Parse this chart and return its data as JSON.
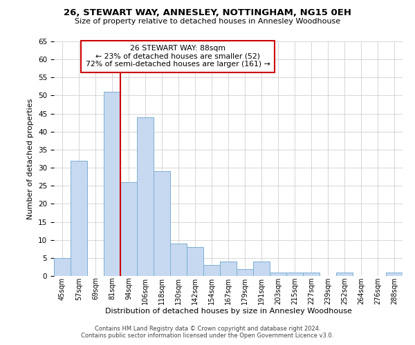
{
  "title": "26, STEWART WAY, ANNESLEY, NOTTINGHAM, NG15 0EH",
  "subtitle": "Size of property relative to detached houses in Annesley Woodhouse",
  "xlabel": "Distribution of detached houses by size in Annesley Woodhouse",
  "ylabel": "Number of detached properties",
  "bar_labels": [
    "45sqm",
    "57sqm",
    "69sqm",
    "81sqm",
    "94sqm",
    "106sqm",
    "118sqm",
    "130sqm",
    "142sqm",
    "154sqm",
    "167sqm",
    "179sqm",
    "191sqm",
    "203sqm",
    "215sqm",
    "227sqm",
    "239sqm",
    "252sqm",
    "264sqm",
    "276sqm",
    "288sqm"
  ],
  "bar_values": [
    5,
    32,
    0,
    51,
    26,
    44,
    29,
    9,
    8,
    3,
    4,
    2,
    4,
    1,
    1,
    1,
    0,
    1,
    0,
    0,
    1
  ],
  "bar_color": "#c6d9f0",
  "bar_edge_color": "#7bafd4",
  "vline_x": 3.5,
  "vline_color": "#cc0000",
  "ylim": [
    0,
    65
  ],
  "yticks": [
    0,
    5,
    10,
    15,
    20,
    25,
    30,
    35,
    40,
    45,
    50,
    55,
    60,
    65
  ],
  "annotation_title": "26 STEWART WAY: 88sqm",
  "annotation_line1": "← 23% of detached houses are smaller (52)",
  "annotation_line2": "72% of semi-detached houses are larger (161) →",
  "annotation_box_color": "#ffffff",
  "annotation_box_edge": "#cc0000",
  "footer1": "Contains HM Land Registry data © Crown copyright and database right 2024.",
  "footer2": "Contains public sector information licensed under the Open Government Licence v3.0.",
  "background_color": "#ffffff",
  "grid_color": "#d0d0d0"
}
